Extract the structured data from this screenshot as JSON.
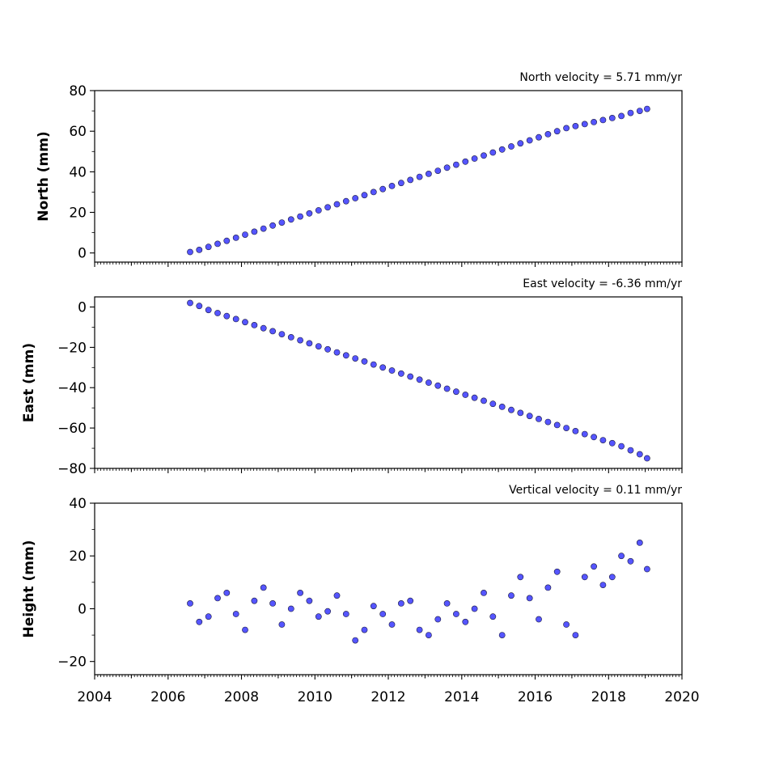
{
  "chart_data": [
    {
      "type": "scatter",
      "title": "North velocity = 5.71 mm/yr",
      "ylabel": "North (mm)",
      "xlabel": "",
      "xlim": [
        2004,
        2020
      ],
      "ylim": [
        -4.5,
        80
      ],
      "yticks": [
        0,
        20,
        40,
        60,
        80
      ],
      "ytick_labels": [
        "0",
        "20",
        "40",
        "60",
        "80"
      ],
      "series": [
        {
          "color": "#5555ff",
          "edge_color": "#1a1a40",
          "x": [
            2006.6,
            2006.85,
            2007.1,
            2007.35,
            2007.6,
            2007.85,
            2008.1,
            2008.35,
            2008.6,
            2008.85,
            2009.1,
            2009.35,
            2009.6,
            2009.85,
            2010.1,
            2010.35,
            2010.6,
            2010.85,
            2011.1,
            2011.35,
            2011.6,
            2011.85,
            2012.1,
            2012.35,
            2012.6,
            2012.85,
            2013.1,
            2013.35,
            2013.6,
            2013.85,
            2014.1,
            2014.35,
            2014.6,
            2014.85,
            2015.1,
            2015.35,
            2015.6,
            2015.85,
            2016.1,
            2016.35,
            2016.6,
            2016.85,
            2017.1,
            2017.35,
            2017.6,
            2017.85,
            2018.1,
            2018.35,
            2018.6,
            2018.85,
            2019.05
          ],
          "y": [
            0.5,
            1.5,
            3,
            4.5,
            6,
            7.5,
            9,
            10.5,
            12,
            13.5,
            15,
            16.5,
            18,
            19.5,
            21,
            22.5,
            24,
            25.5,
            27,
            28.5,
            30,
            31.5,
            33,
            34.5,
            36,
            37.5,
            39,
            40.5,
            42,
            43.5,
            45,
            46.5,
            48,
            49.5,
            51,
            52.5,
            54,
            55.5,
            57,
            58.5,
            60,
            61.5,
            62.5,
            63.5,
            64.5,
            65.5,
            66.5,
            67.5,
            69,
            70,
            71
          ]
        }
      ]
    },
    {
      "type": "scatter",
      "title": "East velocity = -6.36 mm/yr",
      "ylabel": "East (mm)",
      "xlabel": "",
      "xlim": [
        2004,
        2020
      ],
      "ylim": [
        -80,
        5
      ],
      "yticks": [
        0,
        -20,
        -40,
        -60,
        -80
      ],
      "ytick_labels": [
        "0",
        "−20",
        "−40",
        "−60",
        "−80"
      ],
      "series": [
        {
          "color": "#5555ff",
          "edge_color": "#1a1a40",
          "x": [
            2006.6,
            2006.85,
            2007.1,
            2007.35,
            2007.6,
            2007.85,
            2008.1,
            2008.35,
            2008.6,
            2008.85,
            2009.1,
            2009.35,
            2009.6,
            2009.85,
            2010.1,
            2010.35,
            2010.6,
            2010.85,
            2011.1,
            2011.35,
            2011.6,
            2011.85,
            2012.1,
            2012.35,
            2012.6,
            2012.85,
            2013.1,
            2013.35,
            2013.6,
            2013.85,
            2014.1,
            2014.35,
            2014.6,
            2014.85,
            2015.1,
            2015.35,
            2015.6,
            2015.85,
            2016.1,
            2016.35,
            2016.6,
            2016.85,
            2017.1,
            2017.35,
            2017.6,
            2017.85,
            2018.1,
            2018.35,
            2018.6,
            2018.85,
            2019.05
          ],
          "y": [
            2,
            0.5,
            -1.5,
            -3,
            -4.5,
            -6,
            -7.5,
            -9,
            -10.5,
            -12,
            -13.5,
            -15,
            -16.5,
            -18,
            -19.5,
            -21,
            -22.5,
            -24,
            -25.5,
            -27,
            -28.5,
            -30,
            -31.5,
            -33,
            -34.5,
            -36,
            -37.5,
            -39,
            -40.5,
            -42,
            -43.5,
            -45,
            -46.5,
            -48,
            -49.5,
            -51,
            -52.5,
            -54,
            -55.5,
            -57,
            -58.5,
            -60,
            -61.5,
            -63,
            -64.5,
            -66,
            -67.5,
            -69,
            -71,
            -73,
            -75
          ]
        }
      ]
    },
    {
      "type": "scatter",
      "title": "Vertical velocity = 0.11 mm/yr",
      "ylabel": "Height (mm)",
      "xlabel": "",
      "xlim": [
        2004,
        2020
      ],
      "ylim": [
        -25,
        40
      ],
      "yticks": [
        -20,
        0,
        20,
        40
      ],
      "ytick_labels": [
        "−20",
        "0",
        "20",
        "40"
      ],
      "xticks": [
        2004,
        2006,
        2008,
        2010,
        2012,
        2014,
        2016,
        2018,
        2020
      ],
      "xtick_labels": [
        "2004",
        "2006",
        "2008",
        "2010",
        "2012",
        "2014",
        "2016",
        "2018",
        "2020"
      ],
      "series": [
        {
          "color": "#5555ff",
          "edge_color": "#1a1a40",
          "x": [
            2006.6,
            2006.85,
            2007.1,
            2007.35,
            2007.6,
            2007.85,
            2008.1,
            2008.35,
            2008.6,
            2008.85,
            2009.1,
            2009.35,
            2009.6,
            2009.85,
            2010.1,
            2010.35,
            2010.6,
            2010.85,
            2011.1,
            2011.35,
            2011.6,
            2011.85,
            2012.1,
            2012.35,
            2012.6,
            2012.85,
            2013.1,
            2013.35,
            2013.6,
            2013.85,
            2014.1,
            2014.35,
            2014.6,
            2014.85,
            2015.1,
            2015.35,
            2015.6,
            2015.85,
            2016.1,
            2016.35,
            2016.6,
            2016.85,
            2017.1,
            2017.35,
            2017.6,
            2017.85,
            2018.1,
            2018.35,
            2018.6,
            2018.85,
            2019.05
          ],
          "y": [
            2,
            -5,
            -3,
            4,
            6,
            -2,
            -8,
            3,
            8,
            2,
            -6,
            0,
            6,
            3,
            -3,
            -1,
            5,
            -2,
            -12,
            -8,
            1,
            -2,
            -6,
            2,
            3,
            -8,
            -10,
            -4,
            2,
            -2,
            -5,
            0,
            6,
            -3,
            -10,
            5,
            12,
            4,
            -4,
            8,
            14,
            -6,
            -10,
            12,
            16,
            9,
            12,
            20,
            18,
            25,
            15
          ]
        }
      ]
    }
  ]
}
